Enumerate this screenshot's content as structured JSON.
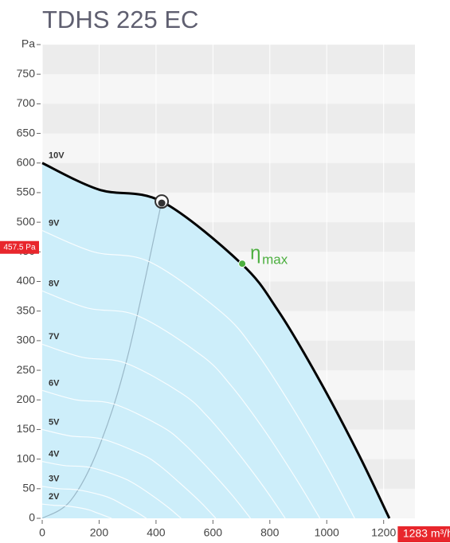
{
  "chart_data": {
    "type": "line",
    "title": "TDHS 225 EC",
    "xlim": [
      0,
      1310
    ],
    "ylim": [
      0,
      800
    ],
    "xticks": [
      0,
      200,
      400,
      600,
      800,
      1000,
      1200
    ],
    "yticks": [
      0,
      50,
      100,
      150,
      200,
      250,
      300,
      350,
      400,
      450,
      500,
      550,
      600,
      650,
      700,
      750,
      {
        "value": 800,
        "label": "Pa"
      }
    ],
    "area_color": "#cdeefa",
    "series": [
      {
        "name": "10V",
        "color": "#000000",
        "x": [
          0,
          200,
          420,
          700,
          830,
          970,
          1110,
          1220
        ],
        "values": [
          600,
          555,
          535,
          430,
          350,
          237,
          110,
          0
        ]
      },
      {
        "name": "9V",
        "color": "#ffffff",
        "x": [
          0,
          180,
          378,
          630,
          747,
          873,
          999,
          1098
        ],
        "values": [
          486,
          450,
          433,
          348,
          284,
          192,
          89,
          0
        ]
      },
      {
        "name": "8V",
        "color": "#ffffff",
        "x": [
          0,
          160,
          336,
          560,
          664,
          776,
          888,
          976
        ],
        "values": [
          384,
          355,
          342,
          275,
          224,
          152,
          70,
          0
        ]
      },
      {
        "name": "7V",
        "color": "#ffffff",
        "x": [
          0,
          140,
          294,
          490,
          581,
          679,
          777,
          854
        ],
        "values": [
          294,
          272,
          262,
          211,
          172,
          116,
          54,
          0
        ]
      },
      {
        "name": "6V",
        "color": "#ffffff",
        "x": [
          0,
          120,
          252,
          420,
          498,
          582,
          666,
          732
        ],
        "values": [
          216,
          200,
          193,
          155,
          126,
          85,
          40,
          0
        ]
      },
      {
        "name": "5V",
        "color": "#ffffff",
        "x": [
          0,
          100,
          210,
          350,
          415,
          485,
          555,
          610
        ],
        "values": [
          150,
          139,
          134,
          108,
          88,
          59,
          28,
          0
        ]
      },
      {
        "name": "4V",
        "color": "#ffffff",
        "x": [
          0,
          80,
          168,
          280,
          332,
          388,
          444,
          488
        ],
        "values": [
          96,
          89,
          86,
          69,
          56,
          38,
          18,
          0
        ]
      },
      {
        "name": "3V",
        "color": "#ffffff",
        "x": [
          0,
          60,
          126,
          210,
          249,
          291,
          333,
          366
        ],
        "values": [
          54,
          50,
          48,
          39,
          32,
          21,
          10,
          0
        ]
      },
      {
        "name": "2V",
        "color": "#ffffff",
        "x": [
          0,
          40,
          84,
          140,
          166,
          194,
          222,
          244
        ],
        "values": [
          24,
          22,
          21,
          17,
          14,
          9,
          4,
          0
        ]
      }
    ],
    "system_curve": {
      "color": "#9ab8c8",
      "x": [
        0,
        100,
        200,
        300,
        420
      ],
      "values": [
        0,
        30,
        121,
        273,
        535
      ]
    },
    "operating_point": {
      "x": 420,
      "value": 535
    },
    "eta_max": {
      "x": 703,
      "value": 430,
      "label": "η",
      "subscript": "max",
      "color": "#4caf3f"
    },
    "y_marker": {
      "value": 457.5,
      "label": "457.5 Pa"
    },
    "x_marker": {
      "value": 1283,
      "label": "1283 m³/h"
    }
  }
}
